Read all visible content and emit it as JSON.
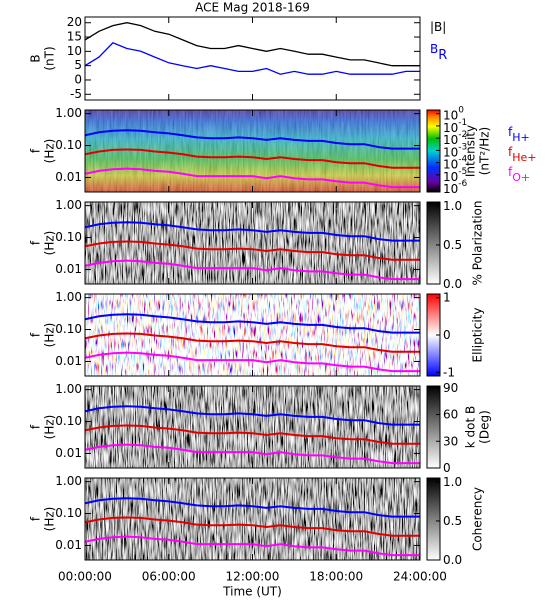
{
  "chart_data": [
    {
      "type": "line",
      "title": "ACE Mag 2018-169",
      "ylabel": [
        "B",
        "(nT)"
      ],
      "x": [
        0,
        1,
        2,
        3,
        4,
        5,
        6,
        7,
        8,
        9,
        10,
        11,
        12,
        13,
        14,
        15,
        16,
        17,
        18,
        19,
        20,
        21,
        22,
        23,
        24
      ],
      "ylim": [
        -7,
        22
      ],
      "yticks": [
        -5,
        0,
        5,
        10,
        15,
        20
      ],
      "series": [
        {
          "name": "|B|",
          "color": "#000000",
          "values": [
            14,
            17,
            19,
            20,
            19,
            17,
            16,
            14,
            12,
            11,
            11,
            12,
            11,
            10,
            11,
            10,
            9,
            9,
            8,
            7,
            7,
            6,
            5,
            5,
            5
          ]
        },
        {
          "name": "B",
          "subscript": "R",
          "color": "#0000ff",
          "values": [
            5,
            8,
            13,
            11,
            10,
            8,
            6,
            5,
            4,
            5,
            4,
            3,
            3,
            4,
            2,
            3,
            2,
            2,
            3,
            2,
            2,
            2,
            2,
            3,
            3
          ]
        }
      ]
    },
    {
      "type": "spectrogram",
      "colormap": "rainbow",
      "ylabel": [
        "f",
        "(Hz)"
      ],
      "log_y": true,
      "ylim": [
        0.0035,
        1.3
      ],
      "yticks": [
        {
          "value": 1,
          "label": "1.00"
        },
        {
          "value": 0.1,
          "label": "0.10"
        },
        {
          "value": 0.01,
          "label": "0.01"
        }
      ],
      "colorbar_label": [
        "Intensity",
        "(nT²/Hz)"
      ],
      "clim": [
        4e-07,
        2
      ],
      "colorbar_log": true,
      "colorbar_ticks": [
        {
          "value": 1,
          "label": "10",
          "exponent": "0"
        },
        {
          "value": 0.1,
          "label": "10",
          "exponent": "-1"
        },
        {
          "value": 0.01,
          "label": "10",
          "exponent": "-2"
        },
        {
          "value": 0.001,
          "label": "10",
          "exponent": "-3"
        },
        {
          "value": 0.0001,
          "label": "10",
          "exponent": "-4"
        },
        {
          "value": 1e-05,
          "label": "10",
          "exponent": "-5"
        },
        {
          "value": 1e-06,
          "label": "10",
          "exponent": "-6"
        }
      ],
      "x": [
        0,
        1,
        2,
        3,
        4,
        5,
        6,
        7,
        8,
        9,
        10,
        11,
        12,
        13,
        14,
        15,
        16,
        17,
        18,
        19,
        20,
        21,
        22,
        23,
        24
      ],
      "series": [
        {
          "name": "f",
          "subscript": "H+",
          "color": "#0000ff",
          "values": [
            0.21,
            0.26,
            0.29,
            0.3,
            0.29,
            0.26,
            0.24,
            0.21,
            0.18,
            0.17,
            0.17,
            0.18,
            0.17,
            0.15,
            0.17,
            0.15,
            0.14,
            0.14,
            0.12,
            0.11,
            0.11,
            0.09,
            0.08,
            0.08,
            0.08
          ]
        },
        {
          "name": "f",
          "subscript": "He+",
          "color": "#e00000",
          "values": [
            0.053,
            0.065,
            0.073,
            0.075,
            0.073,
            0.065,
            0.06,
            0.053,
            0.045,
            0.043,
            0.043,
            0.045,
            0.043,
            0.038,
            0.043,
            0.038,
            0.035,
            0.035,
            0.03,
            0.028,
            0.028,
            0.023,
            0.02,
            0.02,
            0.02
          ]
        },
        {
          "name": "f",
          "subscript": "O+",
          "color": "#ff00ff",
          "values": [
            0.013,
            0.016,
            0.018,
            0.019,
            0.018,
            0.016,
            0.015,
            0.013,
            0.011,
            0.011,
            0.011,
            0.011,
            0.011,
            0.0095,
            0.011,
            0.0095,
            0.0087,
            0.0087,
            0.0076,
            0.0069,
            0.0069,
            0.0057,
            0.005,
            0.005,
            0.005
          ]
        }
      ]
    },
    {
      "type": "spectrogram",
      "colormap": "gray",
      "ylabel": [
        "f",
        "(Hz)"
      ],
      "log_y": true,
      "ylim": [
        0.0035,
        1.3
      ],
      "yticks": [
        {
          "value": 1,
          "label": "1.00"
        },
        {
          "value": 0.1,
          "label": "0.10"
        },
        {
          "value": 0.01,
          "label": "0.01"
        }
      ],
      "colorbar_label": [
        "% Polarization"
      ],
      "clim": [
        0,
        1.05
      ],
      "colorbar_ticks": [
        {
          "value": 0,
          "label": "0.0"
        },
        {
          "value": 0.5,
          "label": "0.5"
        },
        {
          "value": 1,
          "label": "1.0"
        }
      ]
    },
    {
      "type": "spectrogram",
      "colormap": "bwr",
      "ylabel": [
        "f",
        "(Hz)"
      ],
      "log_y": true,
      "ylim": [
        0.0035,
        1.3
      ],
      "yticks": [
        {
          "value": 1,
          "label": "1.00"
        },
        {
          "value": 0.1,
          "label": "0.10"
        },
        {
          "value": 0.01,
          "label": "0.01"
        }
      ],
      "colorbar_label": [
        "Ellipticity"
      ],
      "clim": [
        -1.1,
        1.1
      ],
      "colorbar_ticks": [
        -1,
        0,
        1
      ]
    },
    {
      "type": "spectrogram",
      "colormap": "gray",
      "ylabel": [
        "f",
        "(Hz)"
      ],
      "log_y": true,
      "ylim": [
        0.0035,
        1.3
      ],
      "yticks": [
        {
          "value": 1,
          "label": "1.00"
        },
        {
          "value": 0.1,
          "label": "0.10"
        },
        {
          "value": 0.01,
          "label": "0.01"
        }
      ],
      "colorbar_label": [
        "k dot B",
        "(Deg)"
      ],
      "clim": [
        0,
        92
      ],
      "colorbar_ticks": [
        0,
        30,
        60,
        90
      ]
    },
    {
      "type": "spectrogram",
      "colormap": "gray",
      "ylabel": [
        "f",
        "(Hz)"
      ],
      "log_y": true,
      "ylim": [
        0.0035,
        1.3
      ],
      "yticks": [
        {
          "value": 1,
          "label": "1.00"
        },
        {
          "value": 0.1,
          "label": "0.10"
        },
        {
          "value": 0.01,
          "label": "0.01"
        }
      ],
      "colorbar_label": [
        "Coherency"
      ],
      "clim": [
        0,
        1.05
      ],
      "colorbar_ticks": [
        {
          "value": 0,
          "label": "0.0"
        },
        {
          "value": 0.5,
          "label": "0.5"
        },
        {
          "value": 1,
          "label": "1.0"
        }
      ],
      "xlabel": "Time (UT)",
      "xlim": [
        0,
        24
      ],
      "xticks": [
        {
          "value": 0,
          "label": "00:00:00"
        },
        {
          "value": 6,
          "label": "06:00:00"
        },
        {
          "value": 12,
          "label": "12:00:00"
        },
        {
          "value": 18,
          "label": "18:00:00"
        },
        {
          "value": 24,
          "label": "24:00:00"
        }
      ]
    }
  ]
}
